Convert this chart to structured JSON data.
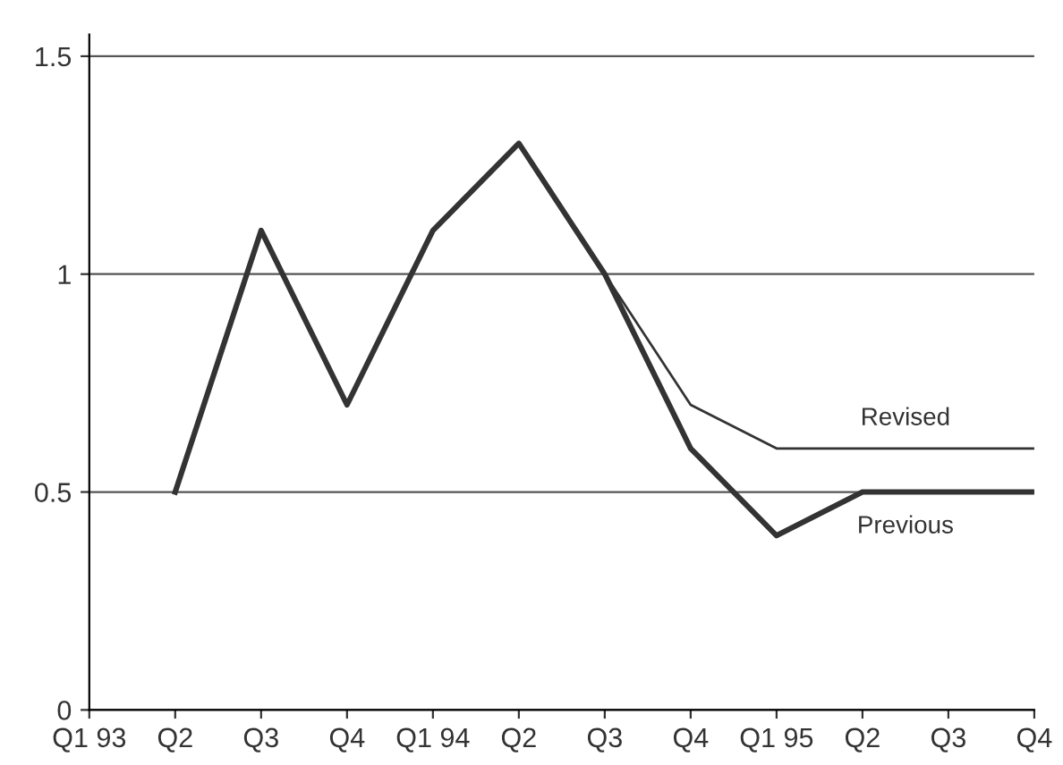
{
  "chart_data": {
    "type": "line",
    "categories": [
      "Q1 93",
      "Q2",
      "Q3",
      "Q4",
      "Q1 94",
      "Q2",
      "Q3",
      "Q4",
      "Q1 95",
      "Q2",
      "Q3",
      "Q4"
    ],
    "series": [
      {
        "name": "Previous",
        "color": "#333333",
        "values": [
          null,
          0.5,
          1.1,
          0.7,
          1.1,
          1.3,
          1.0,
          0.6,
          0.4,
          0.5,
          0.5,
          0.5
        ]
      },
      {
        "name": "Revised",
        "color": "#333333",
        "values": [
          null,
          null,
          null,
          null,
          null,
          null,
          1.0,
          0.7,
          0.6,
          0.6,
          0.6,
          0.6
        ]
      }
    ],
    "ylim": [
      0,
      1.55
    ],
    "yticks": [
      0,
      0.5,
      1,
      1.5
    ],
    "grid": "y",
    "legend": false,
    "marker": "none",
    "line_style": "solid"
  }
}
